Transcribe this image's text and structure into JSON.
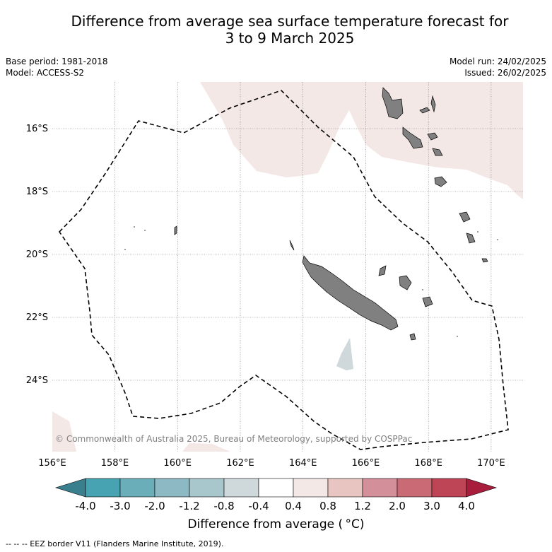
{
  "title": {
    "line1": "Difference from average sea surface temperature forecast for",
    "line2": "3 to 9 March 2025"
  },
  "meta": {
    "base_period": "Base period: 1981-2018",
    "model": "Model: ACCESS-S2",
    "model_run": "Model run: 24/02/2025",
    "issued": "Issued: 26/02/2025"
  },
  "map": {
    "lon_labels": [
      "156°E",
      "158°E",
      "160°E",
      "162°E",
      "164°E",
      "166°E",
      "168°E",
      "170°E"
    ],
    "lat_labels": [
      "16°S",
      "18°S",
      "20°S",
      "22°S",
      "24°S"
    ],
    "copyright": "© Commonwealth of Australia 2025, Bureau of Meteorology, supported by COSPPac",
    "colors": {
      "land": "#808080",
      "warm_light": "#f4e8e6",
      "cool_light": "#cfd8db",
      "gridline": "#777777"
    }
  },
  "colorbar": {
    "title": "Difference from average ( °C)",
    "tick_labels": [
      "-4.0",
      "-3.0",
      "-2.0",
      "-1.2",
      "-0.8",
      "-0.4",
      "0.4",
      "0.8",
      "1.2",
      "2.0",
      "3.0",
      "4.0"
    ],
    "colors": [
      "#3a7f8d",
      "#47a3b2",
      "#6aaeba",
      "#8cb9c3",
      "#a8c7cc",
      "#cfd8db",
      "#ffffff",
      "#f4e8e6",
      "#e8c5c0",
      "#d4909a",
      "#c96a75",
      "#be4556",
      "#a81c3c"
    ]
  },
  "footer": "--  --  -- EEZ border V11 (Flanders Marine Institute, 2019)."
}
